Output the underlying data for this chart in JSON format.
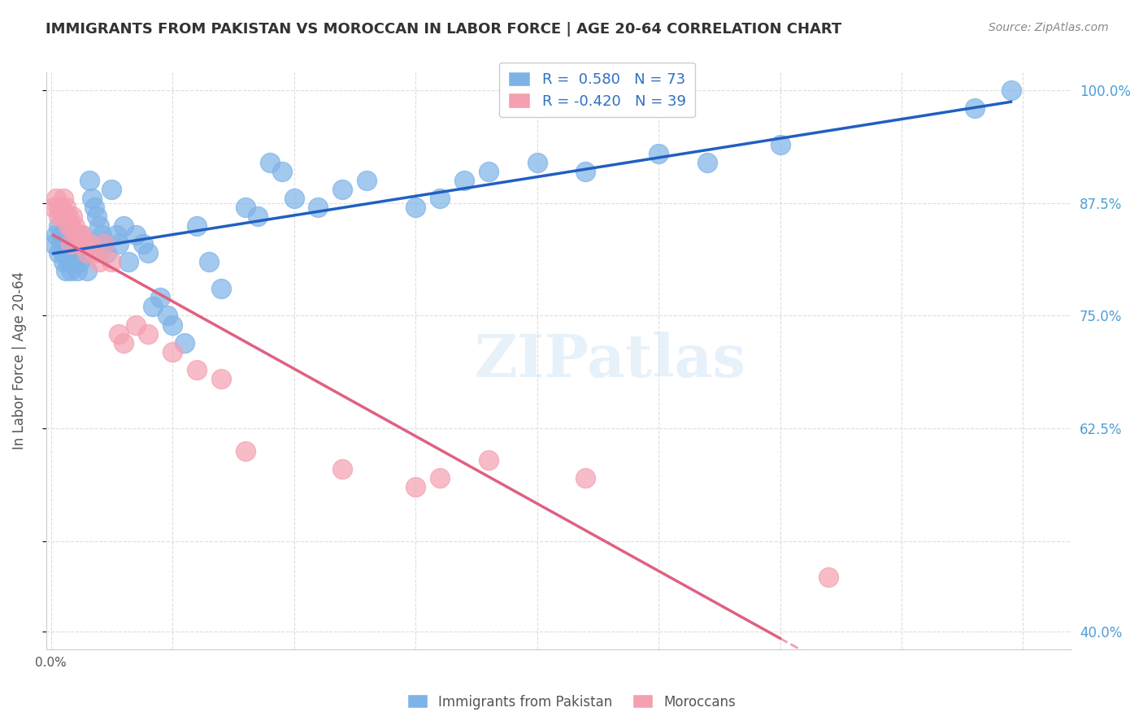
{
  "title": "IMMIGRANTS FROM PAKISTAN VS MOROCCAN IN LABOR FORCE | AGE 20-64 CORRELATION CHART",
  "source": "Source: ZipAtlas.com",
  "xlabel": "",
  "ylabel": "In Labor Force | Age 20-64",
  "legend_labels": [
    "Immigrants from Pakistan",
    "Moroccans"
  ],
  "r_pakistan": 0.58,
  "n_pakistan": 73,
  "r_moroccan": -0.42,
  "n_moroccan": 39,
  "pakistan_color": "#7EB3E8",
  "moroccan_color": "#F4A0B0",
  "pakistan_line_color": "#2060C0",
  "moroccan_line_color": "#E06080",
  "pakistan_line_color_dash": "#A0C0E0",
  "moroccan_line_color_dash": "#F0B0C0",
  "background_color": "#FFFFFF",
  "grid_color": "#DDDDDD",
  "watermark": "ZIPatlas",
  "xlim": [
    -0.002,
    0.42
  ],
  "ylim": [
    0.38,
    1.02
  ],
  "yticks": [
    0.4,
    0.5,
    0.625,
    0.75,
    0.875,
    1.0
  ],
  "ytick_labels": [
    "40.0%",
    "",
    "62.5%",
    "75.0%",
    "87.5%",
    "100.0%"
  ],
  "xticks": [
    0.0,
    0.05,
    0.1,
    0.15,
    0.2,
    0.25,
    0.3,
    0.35,
    0.4
  ],
  "xtick_labels": [
    "0.0%",
    "",
    "",
    "",
    "",
    "",
    "",
    "",
    ""
  ],
  "pakistan_x": [
    0.001,
    0.002,
    0.003,
    0.003,
    0.004,
    0.004,
    0.005,
    0.005,
    0.005,
    0.006,
    0.006,
    0.006,
    0.007,
    0.007,
    0.007,
    0.008,
    0.008,
    0.008,
    0.009,
    0.009,
    0.01,
    0.01,
    0.011,
    0.011,
    0.012,
    0.012,
    0.013,
    0.014,
    0.015,
    0.015,
    0.016,
    0.017,
    0.018,
    0.019,
    0.02,
    0.021,
    0.022,
    0.023,
    0.025,
    0.027,
    0.028,
    0.03,
    0.032,
    0.035,
    0.038,
    0.04,
    0.042,
    0.045,
    0.048,
    0.05,
    0.055,
    0.06,
    0.065,
    0.07,
    0.08,
    0.085,
    0.09,
    0.095,
    0.1,
    0.11,
    0.12,
    0.13,
    0.15,
    0.16,
    0.17,
    0.18,
    0.2,
    0.22,
    0.25,
    0.27,
    0.3,
    0.38,
    0.395
  ],
  "pakistan_y": [
    0.83,
    0.84,
    0.85,
    0.82,
    0.83,
    0.84,
    0.82,
    0.81,
    0.83,
    0.8,
    0.82,
    0.84,
    0.81,
    0.83,
    0.84,
    0.8,
    0.82,
    0.83,
    0.81,
    0.82,
    0.83,
    0.84,
    0.8,
    0.82,
    0.81,
    0.83,
    0.84,
    0.82,
    0.8,
    0.83,
    0.9,
    0.88,
    0.87,
    0.86,
    0.85,
    0.84,
    0.83,
    0.82,
    0.89,
    0.84,
    0.83,
    0.85,
    0.81,
    0.84,
    0.83,
    0.82,
    0.76,
    0.77,
    0.75,
    0.74,
    0.72,
    0.85,
    0.81,
    0.78,
    0.87,
    0.86,
    0.92,
    0.91,
    0.88,
    0.87,
    0.89,
    0.9,
    0.87,
    0.88,
    0.9,
    0.91,
    0.92,
    0.91,
    0.93,
    0.92,
    0.94,
    0.98,
    1.0
  ],
  "moroccan_x": [
    0.001,
    0.002,
    0.003,
    0.003,
    0.004,
    0.005,
    0.005,
    0.006,
    0.006,
    0.007,
    0.007,
    0.008,
    0.008,
    0.009,
    0.01,
    0.011,
    0.012,
    0.013,
    0.014,
    0.015,
    0.016,
    0.018,
    0.02,
    0.022,
    0.025,
    0.028,
    0.03,
    0.035,
    0.04,
    0.05,
    0.06,
    0.07,
    0.08,
    0.12,
    0.15,
    0.16,
    0.18,
    0.22,
    0.32
  ],
  "moroccan_y": [
    0.87,
    0.88,
    0.87,
    0.86,
    0.87,
    0.86,
    0.88,
    0.86,
    0.87,
    0.85,
    0.86,
    0.83,
    0.85,
    0.86,
    0.85,
    0.84,
    0.83,
    0.84,
    0.83,
    0.82,
    0.83,
    0.82,
    0.81,
    0.83,
    0.81,
    0.73,
    0.72,
    0.74,
    0.73,
    0.71,
    0.69,
    0.68,
    0.6,
    0.58,
    0.56,
    0.57,
    0.59,
    0.57,
    0.46
  ]
}
